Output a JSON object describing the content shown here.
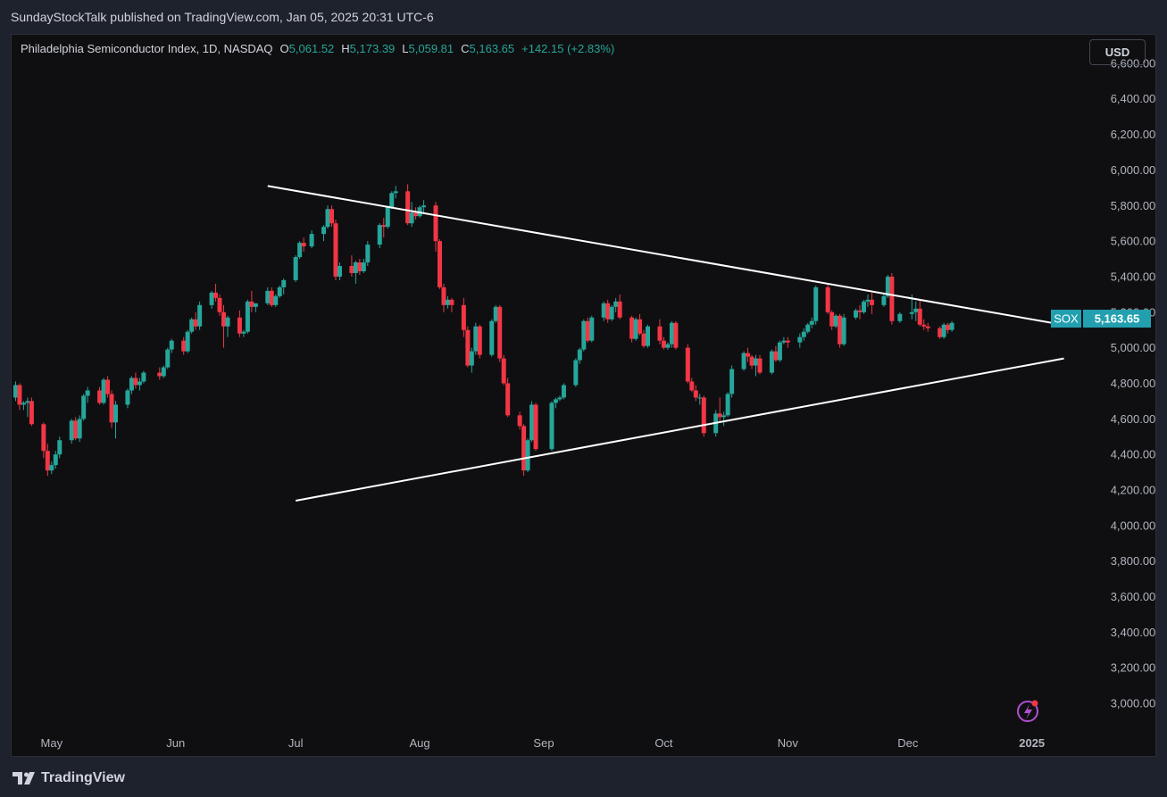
{
  "publish": {
    "author": "SundayStockTalk",
    "text": "SundayStockTalk published on TradingView.com, Jan 05, 2025 20:31 UTC-6"
  },
  "legend": {
    "title": "Philadelphia Semiconductor Index, 1D, NASDAQ",
    "o_label": "O",
    "o_value": "5,061.52",
    "h_label": "H",
    "h_value": "5,173.39",
    "l_label": "L",
    "l_value": "5,059.81",
    "c_label": "C",
    "c_value": "5,163.65",
    "change": "+142.15 (+2.83%)"
  },
  "currency_button": "USD",
  "price_tag": {
    "symbol": "SOX",
    "value": "5,163.65"
  },
  "footer": {
    "brand": "TradingView"
  },
  "colors": {
    "up": "#26a69a",
    "down": "#f23645",
    "trendline": "#ffffff",
    "tag_bg": "#22a0b0",
    "background": "#0f0f11"
  },
  "chart_data": {
    "type": "candlestick",
    "title": "Philadelphia Semiconductor Index, 1D, NASDAQ",
    "x_tick_labels": [
      "May",
      "Jun",
      "Jul",
      "Aug",
      "Sep",
      "Oct",
      "Nov",
      "Dec",
      "2025"
    ],
    "y_tick_labels": [
      "3,000.00",
      "3,200.00",
      "3,400.00",
      "3,600.00",
      "3,800.00",
      "4,000.00",
      "4,200.00",
      "4,400.00",
      "4,600.00",
      "4,800.00",
      "5,000.00",
      "5,200.00",
      "5,400.00",
      "5,600.00",
      "5,800.00",
      "6,000.00",
      "6,200.00",
      "6,400.00",
      "6,600.00"
    ],
    "ylim": [
      2880,
      6760
    ],
    "xlim": [
      "2024-04-21",
      "2025-01-12"
    ],
    "ohlc": [
      [
        "2024-04-22",
        4720,
        4810,
        4700,
        4790
      ],
      [
        "2024-04-23",
        4790,
        4800,
        4650,
        4680
      ],
      [
        "2024-04-24",
        4680,
        4700,
        4650,
        4690
      ],
      [
        "2024-04-25",
        4690,
        4720,
        4610,
        4700
      ],
      [
        "2024-04-26",
        4700,
        4720,
        4560,
        4570
      ],
      [
        "2024-04-29",
        4570,
        4580,
        4380,
        4420
      ],
      [
        "2024-04-30",
        4420,
        4460,
        4280,
        4310
      ],
      [
        "2024-05-01",
        4310,
        4360,
        4290,
        4340
      ],
      [
        "2024-05-02",
        4340,
        4420,
        4320,
        4400
      ],
      [
        "2024-05-03",
        4400,
        4500,
        4380,
        4480
      ],
      [
        "2024-05-06",
        4480,
        4600,
        4460,
        4590
      ],
      [
        "2024-05-07",
        4590,
        4610,
        4480,
        4490
      ],
      [
        "2024-05-08",
        4490,
        4620,
        4470,
        4600
      ],
      [
        "2024-05-09",
        4600,
        4740,
        4590,
        4730
      ],
      [
        "2024-05-10",
        4730,
        4780,
        4690,
        4760
      ],
      [
        "2024-05-13",
        4760,
        4780,
        4680,
        4690
      ],
      [
        "2024-05-14",
        4690,
        4830,
        4680,
        4820
      ],
      [
        "2024-05-15",
        4820,
        4840,
        4720,
        4740
      ],
      [
        "2024-05-16",
        4740,
        4760,
        4550,
        4580
      ],
      [
        "2024-05-17",
        4580,
        4700,
        4490,
        4680
      ],
      [
        "2024-05-20",
        4680,
        4770,
        4660,
        4760
      ],
      [
        "2024-05-21",
        4760,
        4840,
        4740,
        4830
      ],
      [
        "2024-05-22",
        4830,
        4860,
        4770,
        4790
      ],
      [
        "2024-05-23",
        4790,
        4830,
        4760,
        4810
      ],
      [
        "2024-05-24",
        4810,
        4870,
        4800,
        4860
      ],
      [
        "2024-05-28",
        4860,
        4890,
        4820,
        4840
      ],
      [
        "2024-05-29",
        4840,
        4900,
        4830,
        4890
      ],
      [
        "2024-05-30",
        4890,
        5000,
        4880,
        4990
      ],
      [
        "2024-05-31",
        4990,
        5050,
        4970,
        5040
      ],
      [
        "2024-06-03",
        5040,
        5060,
        4960,
        4980
      ],
      [
        "2024-06-04",
        4980,
        5100,
        4970,
        5090
      ],
      [
        "2024-06-05",
        5090,
        5170,
        5080,
        5160
      ],
      [
        "2024-06-06",
        5160,
        5200,
        5100,
        5120
      ],
      [
        "2024-06-07",
        5120,
        5260,
        5100,
        5240
      ],
      [
        "2024-06-10",
        5240,
        5320,
        5220,
        5310
      ],
      [
        "2024-06-11",
        5310,
        5360,
        5260,
        5280
      ],
      [
        "2024-06-12",
        5280,
        5300,
        5180,
        5200
      ],
      [
        "2024-06-13",
        5200,
        5240,
        5000,
        5120
      ],
      [
        "2024-06-14",
        5120,
        5180,
        5060,
        5170
      ],
      [
        "2024-06-17",
        5170,
        5210,
        5060,
        5080
      ],
      [
        "2024-06-18",
        5080,
        5100,
        5060,
        5090
      ],
      [
        "2024-06-19",
        5090,
        5270,
        5080,
        5260
      ],
      [
        "2024-06-20",
        5260,
        5320,
        5200,
        5230
      ],
      [
        "2024-06-21",
        5230,
        5250,
        5200,
        5250
      ],
      [
        "2024-06-24",
        5250,
        5340,
        5240,
        5320
      ],
      [
        "2024-06-25",
        5320,
        5340,
        5230,
        5240
      ],
      [
        "2024-06-26",
        5240,
        5300,
        5230,
        5290
      ],
      [
        "2024-06-27",
        5290,
        5350,
        5280,
        5340
      ],
      [
        "2024-06-28",
        5340,
        5390,
        5300,
        5380
      ],
      [
        "2024-07-01",
        5380,
        5520,
        5370,
        5510
      ],
      [
        "2024-07-02",
        5510,
        5600,
        5500,
        5590
      ],
      [
        "2024-07-03",
        5590,
        5620,
        5540,
        5570
      ],
      [
        "2024-07-05",
        5570,
        5660,
        5560,
        5640
      ],
      [
        "2024-07-08",
        5640,
        5690,
        5600,
        5680
      ],
      [
        "2024-07-09",
        5680,
        5800,
        5670,
        5780
      ],
      [
        "2024-07-10",
        5780,
        5800,
        5680,
        5700
      ],
      [
        "2024-07-11",
        5700,
        5720,
        5380,
        5400
      ],
      [
        "2024-07-12",
        5400,
        5480,
        5380,
        5460
      ],
      [
        "2024-07-15",
        5460,
        5520,
        5400,
        5420
      ],
      [
        "2024-07-16",
        5420,
        5490,
        5360,
        5480
      ],
      [
        "2024-07-17",
        5480,
        5500,
        5410,
        5430
      ],
      [
        "2024-07-18",
        5430,
        5500,
        5420,
        5480
      ],
      [
        "2024-07-19",
        5480,
        5600,
        5460,
        5580
      ],
      [
        "2024-07-22",
        5580,
        5700,
        5560,
        5690
      ],
      [
        "2024-07-23",
        5690,
        5730,
        5620,
        5680
      ],
      [
        "2024-07-24",
        5680,
        5800,
        5670,
        5790
      ],
      [
        "2024-07-25",
        5790,
        5880,
        5780,
        5870
      ],
      [
        "2024-07-26",
        5870,
        5910,
        5840,
        5880
      ],
      [
        "2024-07-29",
        5880,
        5920,
        5690,
        5700
      ],
      [
        "2024-07-30",
        5700,
        5820,
        5680,
        5760
      ],
      [
        "2024-07-31",
        5760,
        5790,
        5720,
        5740
      ],
      [
        "2024-08-01",
        5740,
        5800,
        5730,
        5790
      ],
      [
        "2024-08-02",
        5790,
        5830,
        5760,
        5800
      ],
      [
        "2024-08-05",
        5800,
        5820,
        5540,
        5600
      ],
      [
        "2024-08-06",
        5600,
        5610,
        5330,
        5340
      ],
      [
        "2024-08-07",
        5340,
        5360,
        5200,
        5240
      ],
      [
        "2024-08-08",
        5240,
        5290,
        5220,
        5270
      ],
      [
        "2024-08-09",
        5270,
        5280,
        5200,
        5240
      ],
      [
        "2024-08-12",
        5240,
        5280,
        5060,
        5100
      ],
      [
        "2024-08-13",
        5100,
        5120,
        4890,
        4900
      ],
      [
        "2024-08-14",
        4900,
        5000,
        4860,
        4980
      ],
      [
        "2024-08-15",
        4980,
        5140,
        4960,
        5120
      ],
      [
        "2024-08-16",
        5120,
        5130,
        4940,
        4960
      ],
      [
        "2024-08-19",
        4960,
        5160,
        4950,
        5150
      ],
      [
        "2024-08-20",
        5150,
        5240,
        5140,
        5230
      ],
      [
        "2024-08-21",
        5230,
        5240,
        4920,
        4940
      ],
      [
        "2024-08-22",
        4940,
        4960,
        4790,
        4800
      ],
      [
        "2024-08-23",
        4800,
        4830,
        4610,
        4620
      ],
      [
        "2024-08-26",
        4620,
        4640,
        4540,
        4560
      ],
      [
        "2024-08-27",
        4560,
        4570,
        4280,
        4310
      ],
      [
        "2024-08-28",
        4310,
        4490,
        4300,
        4480
      ],
      [
        "2024-08-29",
        4480,
        4700,
        4470,
        4680
      ],
      [
        "2024-08-30",
        4680,
        4690,
        4420,
        4430
      ],
      [
        "2024-09-03",
        4430,
        4700,
        4420,
        4690
      ],
      [
        "2024-09-04",
        4690,
        4720,
        4660,
        4710
      ],
      [
        "2024-09-05",
        4710,
        4730,
        4700,
        4720
      ],
      [
        "2024-09-06",
        4720,
        4800,
        4710,
        4790
      ],
      [
        "2024-09-09",
        4790,
        4940,
        4780,
        4930
      ],
      [
        "2024-09-10",
        4930,
        5000,
        4910,
        4990
      ],
      [
        "2024-09-11",
        4990,
        5160,
        4980,
        5150
      ],
      [
        "2024-09-12",
        5150,
        5170,
        5030,
        5040
      ],
      [
        "2024-09-13",
        5040,
        5180,
        5030,
        5170
      ],
      [
        "2024-09-16",
        5170,
        5260,
        5150,
        5250
      ],
      [
        "2024-09-17",
        5250,
        5270,
        5140,
        5160
      ],
      [
        "2024-09-18",
        5160,
        5240,
        5150,
        5230
      ],
      [
        "2024-09-19",
        5230,
        5280,
        5200,
        5260
      ],
      [
        "2024-09-20",
        5260,
        5300,
        5160,
        5170
      ],
      [
        "2024-09-23",
        5170,
        5180,
        5030,
        5050
      ],
      [
        "2024-09-24",
        5050,
        5170,
        5040,
        5160
      ],
      [
        "2024-09-25",
        5160,
        5190,
        5070,
        5080
      ],
      [
        "2024-09-26",
        5080,
        5100,
        5000,
        5010
      ],
      [
        "2024-09-27",
        5010,
        5130,
        5000,
        5120
      ],
      [
        "2024-09-30",
        5120,
        5160,
        5020,
        5040
      ],
      [
        "2024-10-01",
        5040,
        5060,
        4990,
        5000
      ],
      [
        "2024-10-02",
        5000,
        5030,
        4990,
        5020
      ],
      [
        "2024-10-03",
        5020,
        5150,
        5000,
        5140
      ],
      [
        "2024-10-04",
        5140,
        5150,
        4990,
        5000
      ],
      [
        "2024-10-07",
        5000,
        5020,
        4800,
        4810
      ],
      [
        "2024-10-08",
        4810,
        4830,
        4750,
        4760
      ],
      [
        "2024-10-09",
        4760,
        4790,
        4700,
        4720
      ],
      [
        "2024-10-10",
        4720,
        4740,
        4680,
        4720
      ],
      [
        "2024-10-11",
        4720,
        4730,
        4500,
        4520
      ],
      [
        "2024-10-14",
        4520,
        4650,
        4500,
        4630
      ],
      [
        "2024-10-15",
        4630,
        4720,
        4580,
        4610
      ],
      [
        "2024-10-16",
        4610,
        4640,
        4560,
        4620
      ],
      [
        "2024-10-17",
        4620,
        4750,
        4610,
        4740
      ],
      [
        "2024-10-18",
        4740,
        4900,
        4720,
        4880
      ],
      [
        "2024-10-21",
        4880,
        4980,
        4870,
        4970
      ],
      [
        "2024-10-22",
        4970,
        5000,
        4920,
        4950
      ],
      [
        "2024-10-23",
        4950,
        4960,
        4880,
        4900
      ],
      [
        "2024-10-24",
        4900,
        4960,
        4840,
        4940
      ],
      [
        "2024-10-25",
        4940,
        4960,
        4850,
        4860
      ],
      [
        "2024-10-28",
        4860,
        4990,
        4850,
        4980
      ],
      [
        "2024-10-29",
        4980,
        5010,
        4920,
        4930
      ],
      [
        "2024-10-30",
        4930,
        5040,
        4920,
        5030
      ],
      [
        "2024-10-31",
        5030,
        5060,
        5020,
        5040
      ],
      [
        "2024-11-01",
        5040,
        5060,
        5000,
        5030
      ],
      [
        "2024-11-04",
        5030,
        5080,
        5000,
        5060
      ],
      [
        "2024-11-05",
        5060,
        5110,
        5040,
        5090
      ],
      [
        "2024-11-06",
        5090,
        5140,
        5080,
        5130
      ],
      [
        "2024-11-07",
        5130,
        5170,
        5110,
        5150
      ],
      [
        "2024-11-08",
        5150,
        5350,
        5130,
        5340
      ],
      [
        "2024-11-11",
        5340,
        5360,
        5190,
        5200
      ],
      [
        "2024-11-12",
        5200,
        5210,
        5100,
        5120
      ],
      [
        "2024-11-13",
        5120,
        5190,
        5110,
        5180
      ],
      [
        "2024-11-14",
        5180,
        5190,
        5000,
        5020
      ],
      [
        "2024-11-15",
        5020,
        5190,
        5010,
        5170
      ],
      [
        "2024-11-18",
        5170,
        5220,
        5160,
        5210
      ],
      [
        "2024-11-19",
        5210,
        5240,
        5160,
        5200
      ],
      [
        "2024-11-20",
        5200,
        5270,
        5190,
        5260
      ],
      [
        "2024-11-21",
        5260,
        5300,
        5230,
        5270
      ],
      [
        "2024-11-22",
        5270,
        5310,
        5190,
        5240
      ],
      [
        "2024-11-25",
        5240,
        5300,
        5230,
        5290
      ],
      [
        "2024-11-26",
        5290,
        5410,
        5280,
        5400
      ],
      [
        "2024-11-27",
        5400,
        5420,
        5130,
        5150
      ],
      [
        "2024-11-29",
        5150,
        5200,
        5140,
        5190
      ],
      [
        "2024-12-02",
        5190,
        5300,
        5160,
        5200
      ],
      [
        "2024-12-03",
        5200,
        5260,
        5150,
        5220
      ],
      [
        "2024-12-04",
        5220,
        5270,
        5120,
        5130
      ],
      [
        "2024-12-05",
        5130,
        5160,
        5100,
        5120
      ],
      [
        "2024-12-06",
        5120,
        5140,
        5090,
        5110
      ],
      [
        "2024-12-09",
        5110,
        5120,
        5050,
        5060
      ],
      [
        "2024-12-10",
        5060,
        5140,
        5050,
        5130
      ],
      [
        "2024-12-11",
        5130,
        5140,
        5080,
        5100
      ],
      [
        "2024-12-12",
        5100,
        5150,
        5090,
        5140
      ]
    ]
  }
}
